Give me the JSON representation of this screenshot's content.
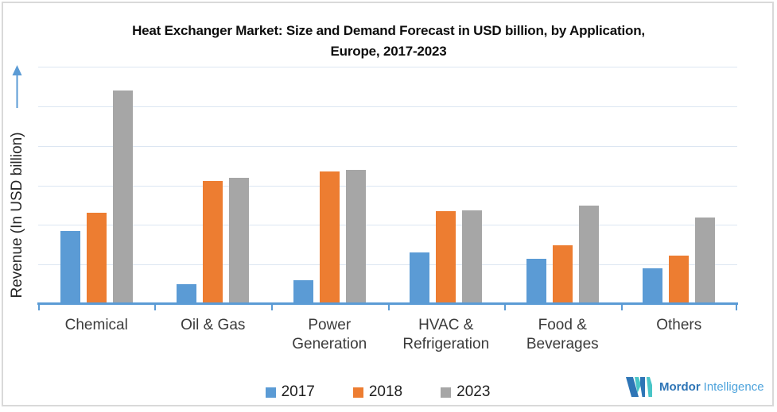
{
  "chart_data": {
    "type": "bar",
    "title": "Heat Exchanger Market: Size and Demand Forecast in USD billion, by Application, Europe, 2017-2023",
    "title_lines": [
      "Heat Exchanger Market: Size and Demand Forecast in USD billion, by Application,",
      "Europe, 2017-2023"
    ],
    "ylabel": "Revenue (In USD billion)",
    "xlabel": "",
    "categories": [
      "Chemical",
      "Oil & Gas",
      "Power Generation",
      "HVAC & Refrigeration",
      "Food & Beverages",
      "Others"
    ],
    "series": [
      {
        "name": "2017",
        "color": "#5b9bd5",
        "values": [
          1.85,
          0.5,
          0.6,
          1.3,
          1.15,
          0.9
        ]
      },
      {
        "name": "2018",
        "color": "#ed7d31",
        "values": [
          2.3,
          3.12,
          3.35,
          2.35,
          1.48,
          1.22
        ]
      },
      {
        "name": "2023",
        "color": "#a6a6a6",
        "values": [
          5.4,
          3.2,
          3.4,
          2.37,
          2.48,
          2.18
        ]
      }
    ],
    "ylim": [
      0,
      6
    ],
    "y_tick_labels_visible": false,
    "gridline_intervals": 6,
    "grid": true,
    "legend_position": "bottom"
  },
  "colors": {
    "axis_line": "#5b9bd5",
    "gridline": "#dce6f2",
    "frame_border": "#d9d9d9",
    "title_text": "#0d0d0d",
    "logo_navy": "#2e75b6",
    "logo_teal": "#49c5c7"
  },
  "branding": {
    "logo_bold": "Mordor",
    "logo_light": "Intelligence"
  }
}
